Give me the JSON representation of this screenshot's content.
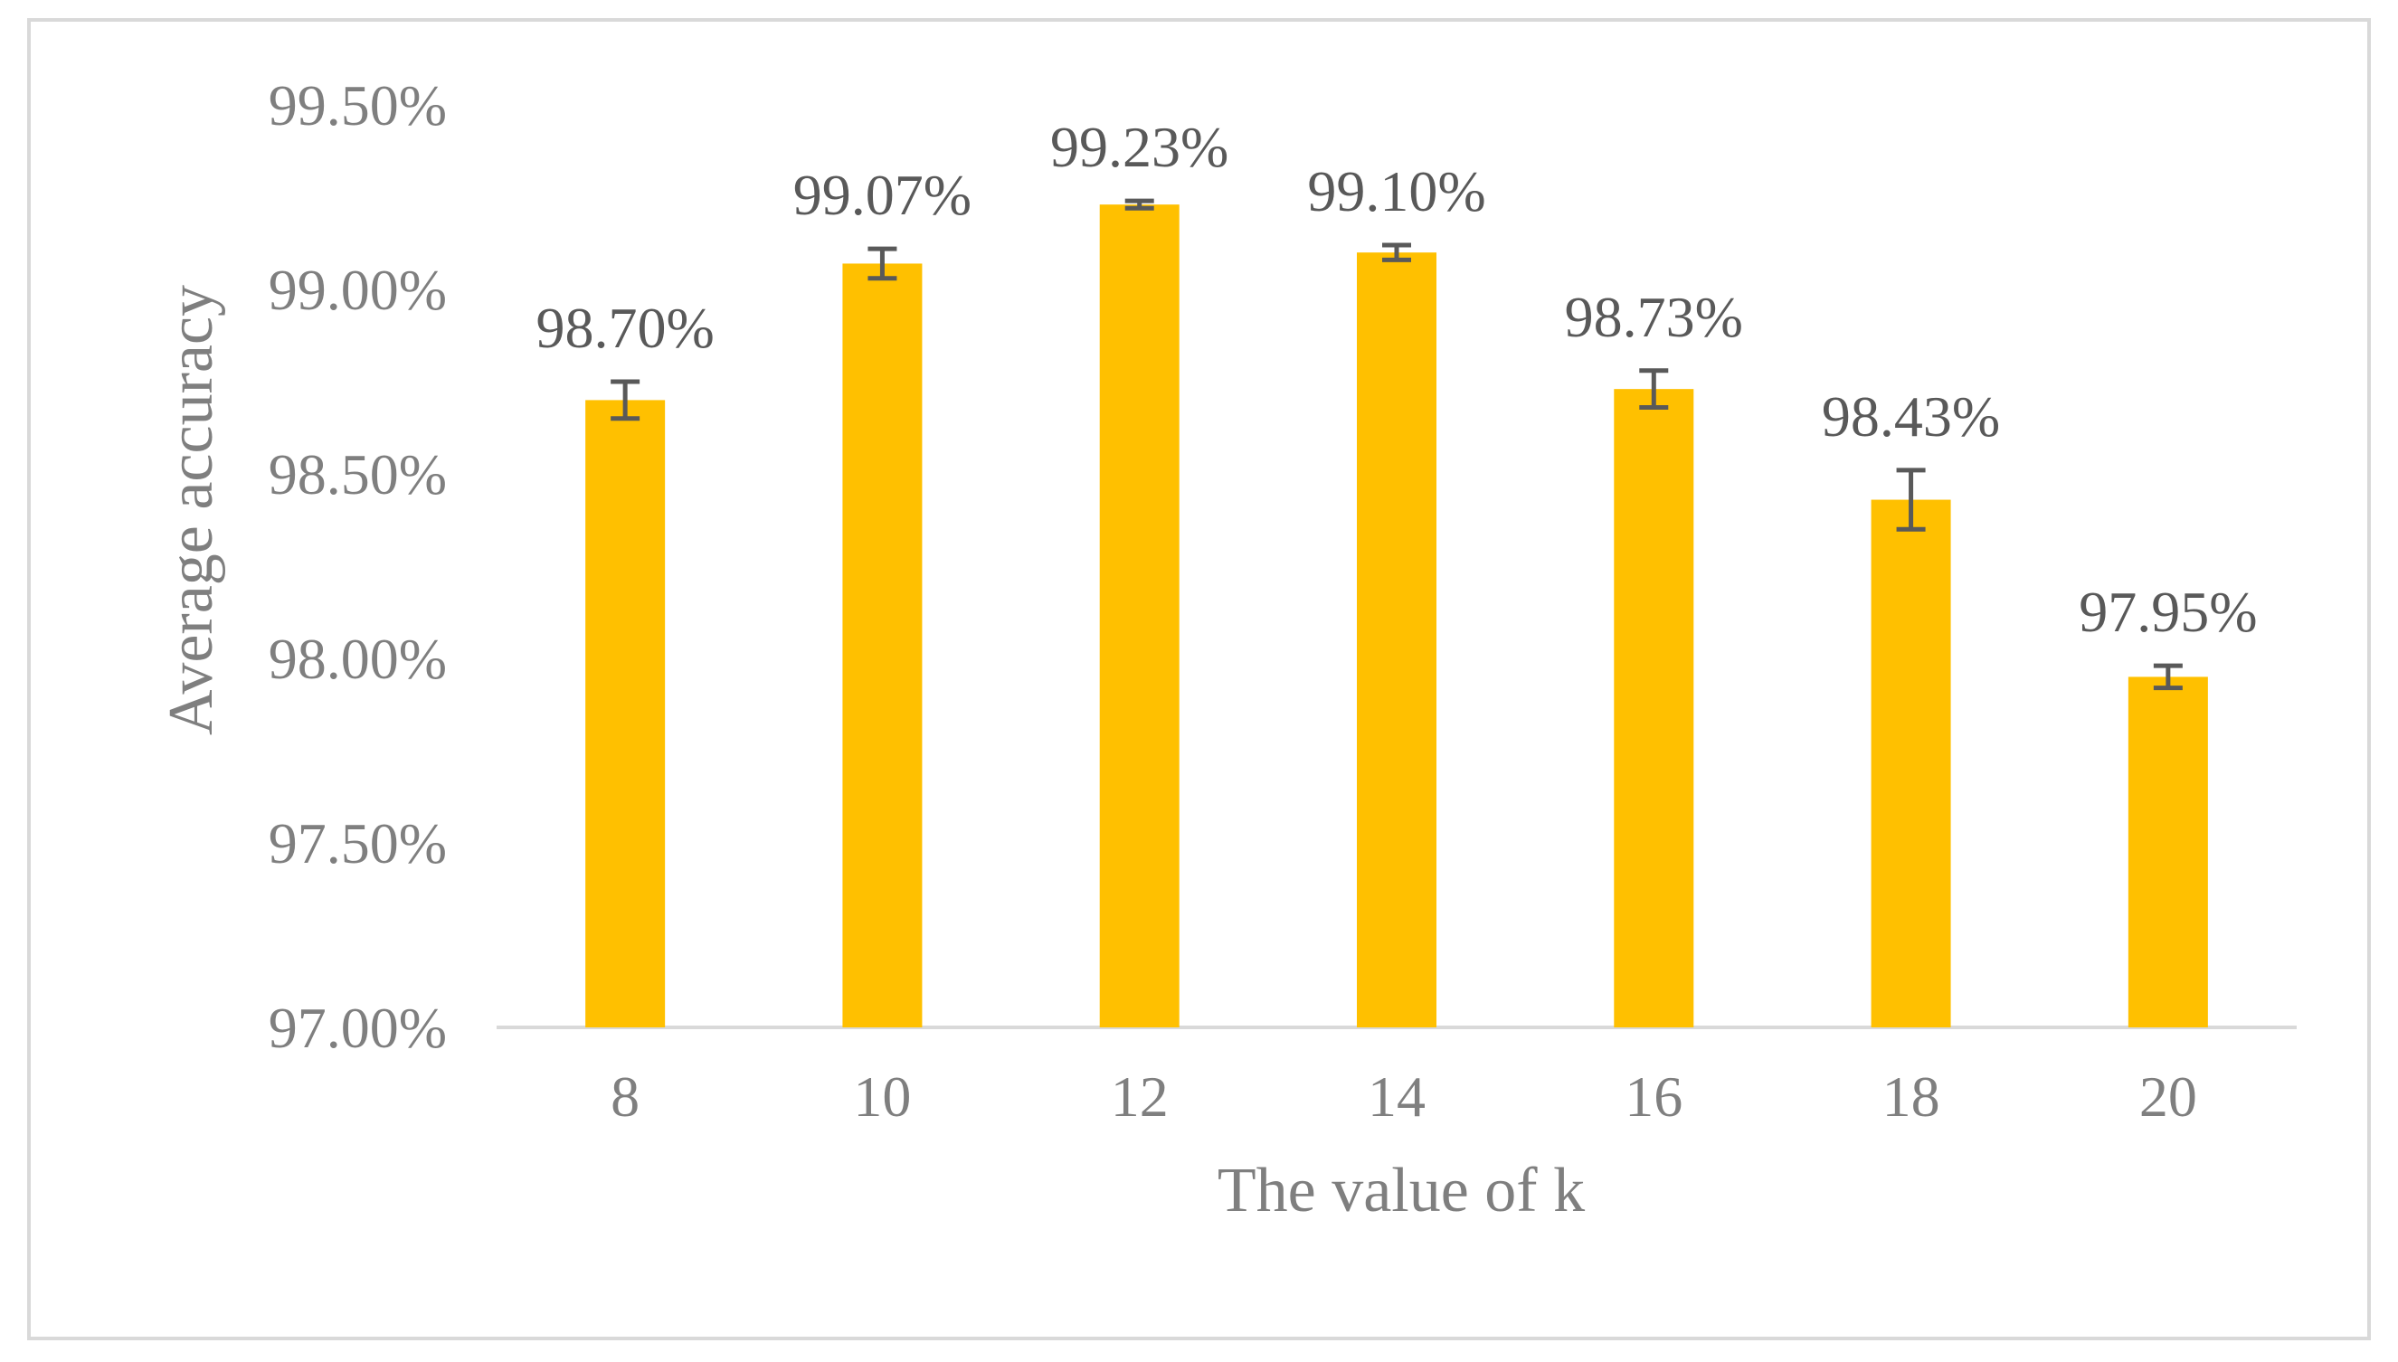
{
  "chart_data": {
    "type": "bar",
    "title": "",
    "xlabel": "The value of k",
    "ylabel": "Average accuracy",
    "categories": [
      "8",
      "10",
      "12",
      "14",
      "16",
      "18",
      "20"
    ],
    "series": [
      {
        "values": [
          98.7,
          99.07,
          99.23,
          99.1,
          98.73,
          98.43,
          97.95
        ],
        "error": [
          0.05,
          0.04,
          0.01,
          0.02,
          0.05,
          0.08,
          0.03
        ],
        "data_labels": [
          "98.70%",
          "99.07%",
          "99.23%",
          "99.10%",
          "98.73%",
          "98.43%",
          "97.95%"
        ]
      }
    ],
    "ylim": [
      97.0,
      99.5
    ],
    "yticks": [
      97.0,
      97.5,
      98.0,
      98.5,
      99.0,
      99.5
    ],
    "ytick_labels": [
      "97.00%",
      "97.50%",
      "98.00%",
      "98.50%",
      "99.00%",
      "99.50%"
    ],
    "grid": false,
    "legend": "none",
    "colors": {
      "bar": "#ffc000",
      "error_bar": "#595959",
      "axis": "#d9d9d9",
      "text": "#7f7f7f"
    }
  }
}
